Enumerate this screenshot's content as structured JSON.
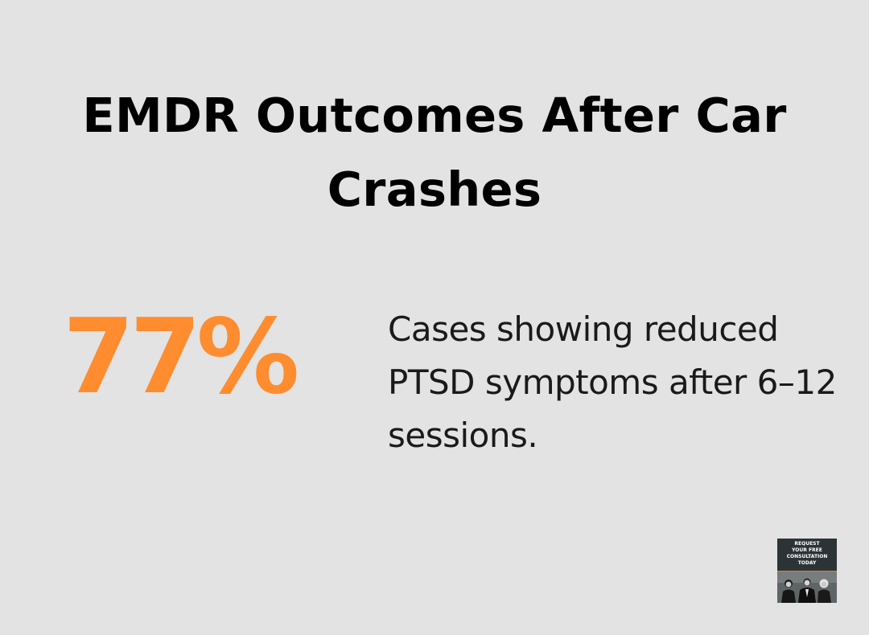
{
  "title": "EMDR Outcomes After Car Crashes",
  "stat": {
    "value": "77%",
    "description": "Cases showing reduced PTSD symptoms after 6–12 sessions."
  },
  "cta": {
    "text": "REQUEST\nYOUR FREE\nCONSULTATION\nTODAY"
  },
  "colors": {
    "background": "#e2e3e2",
    "accent": "#ff8c2f",
    "title": "#000000",
    "body_text": "#1a1a1a",
    "badge": "#2c3336"
  }
}
